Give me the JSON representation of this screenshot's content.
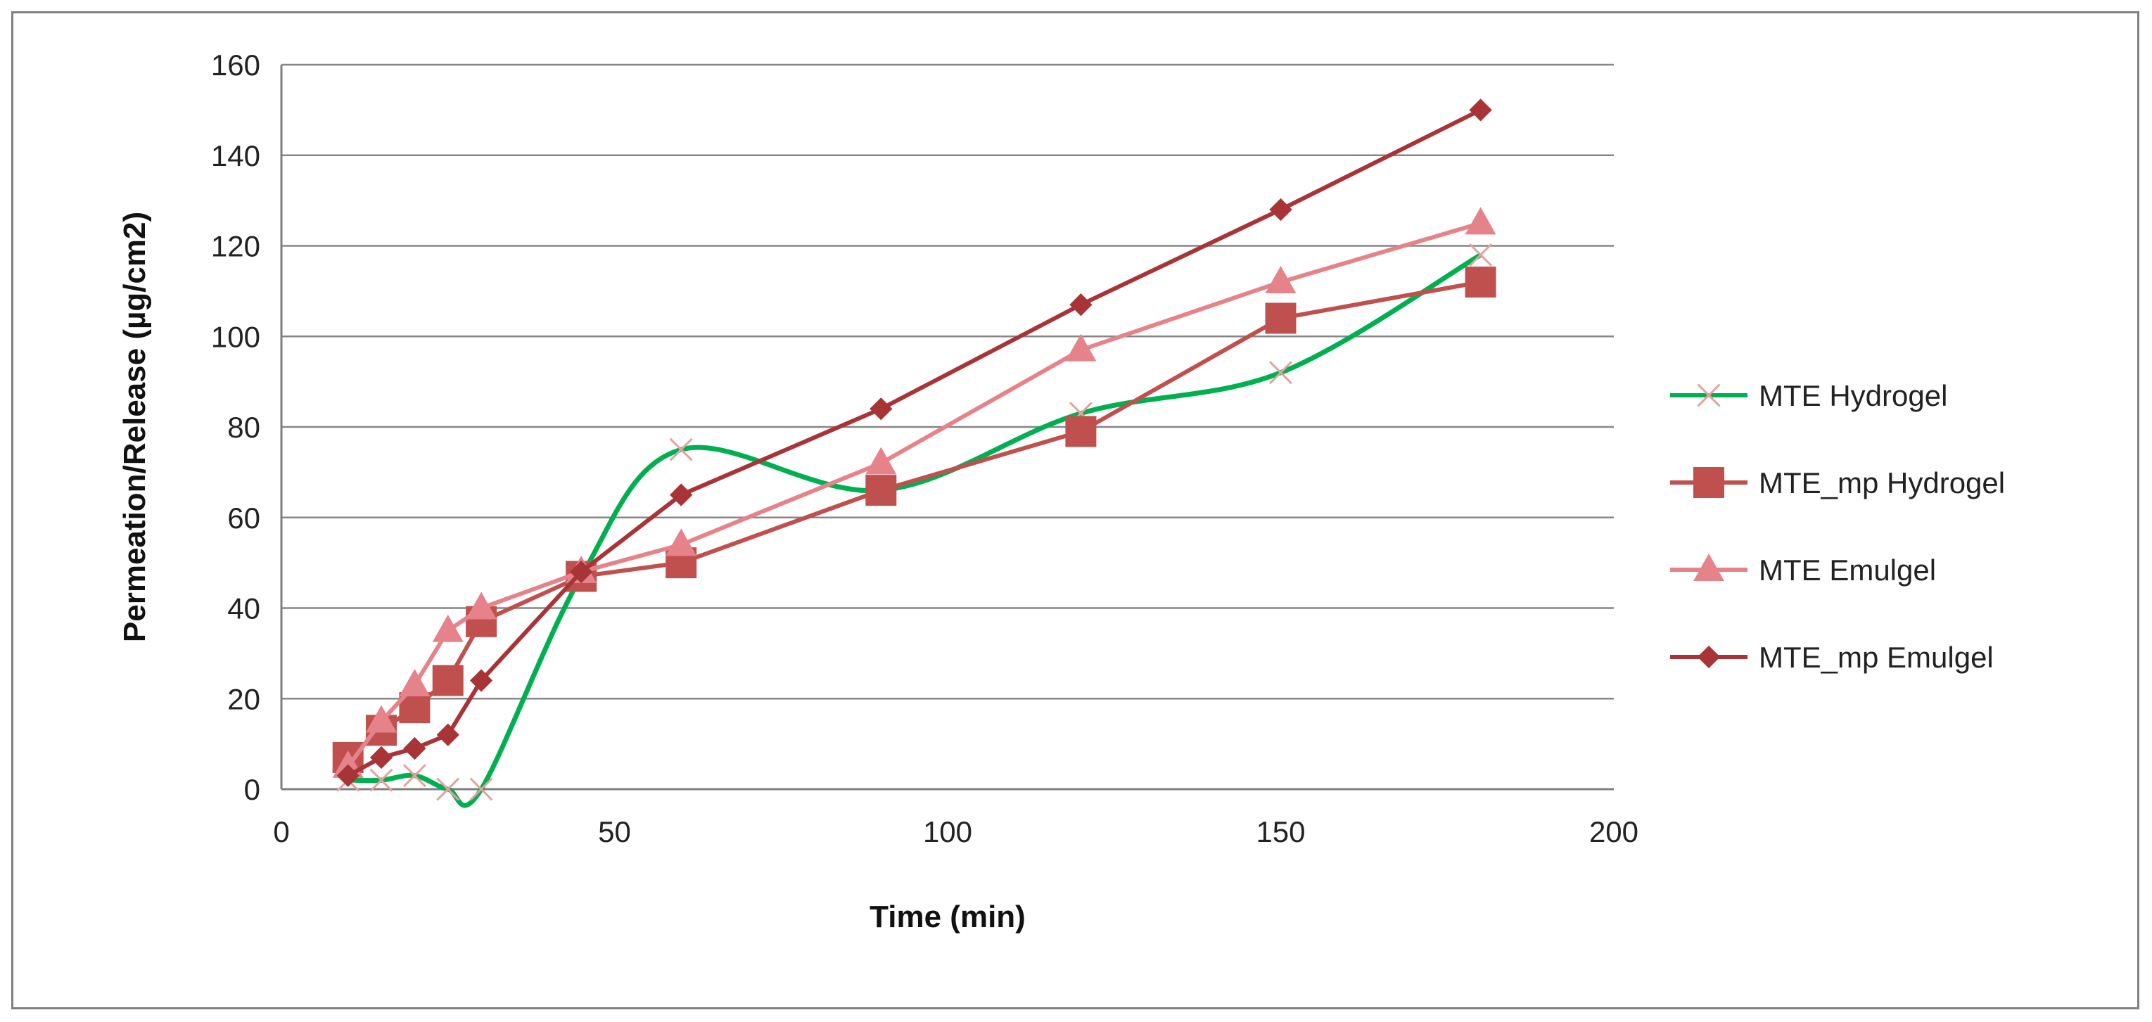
{
  "chart_data": {
    "type": "line",
    "title": "",
    "xlabel": "Time (min)",
    "ylabel": "Permeation/Release (µg/cm2)",
    "xlim": [
      0,
      200
    ],
    "ylim": [
      0,
      160
    ],
    "xticks": [
      0,
      50,
      100,
      150,
      200
    ],
    "yticks": [
      0,
      20,
      40,
      60,
      80,
      100,
      120,
      140,
      160
    ],
    "grid": "horizontal",
    "legend_position": "right",
    "series": [
      {
        "name": "MTE Hydrogel",
        "marker": "x",
        "color": "#00b050",
        "x": [
          10,
          15,
          20,
          25,
          30,
          45,
          60,
          90,
          120,
          150,
          180
        ],
        "y": [
          2,
          2,
          3,
          0,
          0,
          47,
          75,
          66,
          83,
          92,
          118
        ]
      },
      {
        "name": "MTE_mp Hydrogel",
        "marker": "square",
        "color": "#c0504d",
        "x": [
          10,
          15,
          20,
          25,
          30,
          45,
          60,
          90,
          120,
          150,
          180
        ],
        "y": [
          7,
          13,
          18,
          24,
          37,
          47,
          50,
          66,
          79,
          104,
          112
        ]
      },
      {
        "name": "MTE Emulgel",
        "marker": "triangle",
        "color": "#e6838a",
        "x": [
          10,
          15,
          20,
          25,
          30,
          45,
          60,
          90,
          120,
          150,
          180
        ],
        "y": [
          5,
          15,
          23,
          35,
          40,
          48,
          54,
          72,
          97,
          112,
          125
        ]
      },
      {
        "name": "MTE_mp Emulgel",
        "marker": "diamond",
        "color": "#a93438",
        "x": [
          10,
          15,
          20,
          25,
          30,
          45,
          60,
          90,
          120,
          150,
          180
        ],
        "y": [
          3,
          7,
          9,
          12,
          24,
          48,
          65,
          84,
          107,
          128,
          150
        ]
      }
    ]
  }
}
